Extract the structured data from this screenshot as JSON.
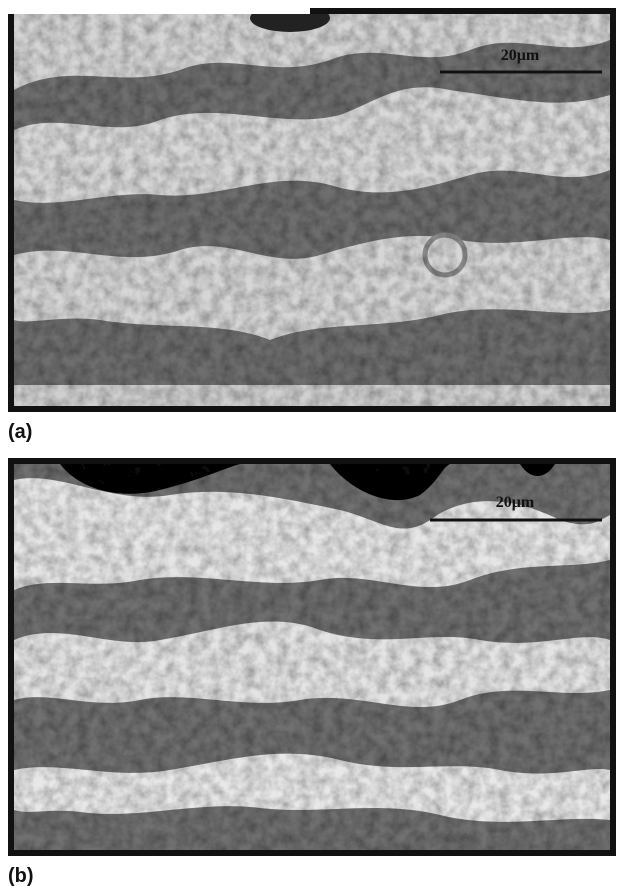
{
  "panels": [
    {
      "label": "(a)",
      "scale_bar": "20μm"
    },
    {
      "label": "(b)",
      "scale_bar": "20μm"
    }
  ]
}
